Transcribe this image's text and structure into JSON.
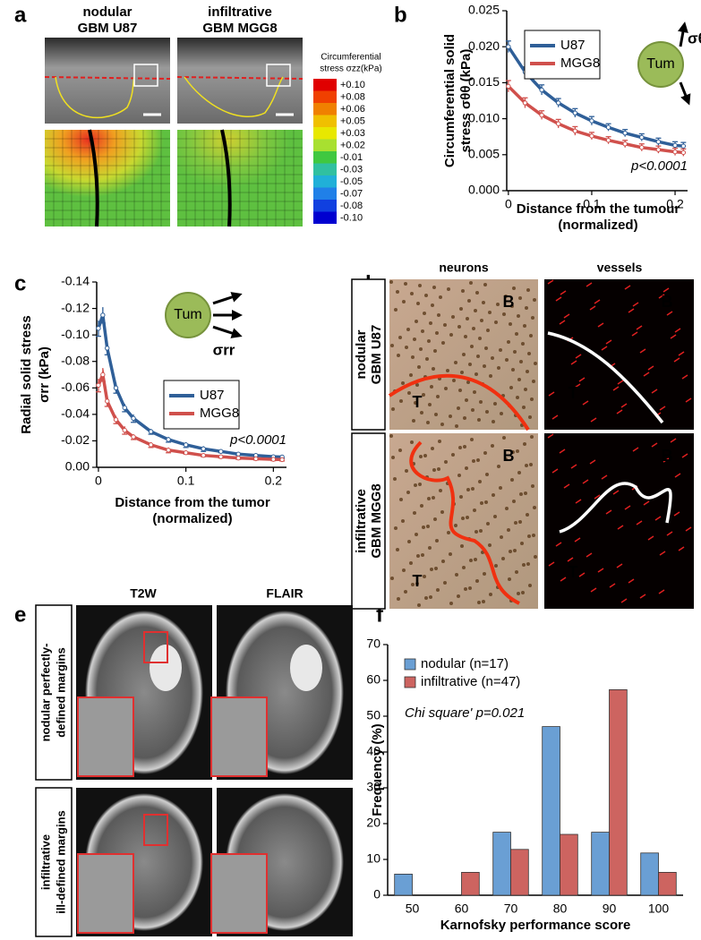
{
  "panel_letters": [
    "a",
    "b",
    "c",
    "d",
    "e",
    "f"
  ],
  "panel_a": {
    "columns": [
      [
        "nodular",
        "GBM U87"
      ],
      [
        "infiltrative",
        "GBM MGG8"
      ]
    ],
    "colorbar_title": [
      "Circumferential",
      "stress σzz(kPa)"
    ],
    "colorbar_labels": [
      "+0.10",
      "+0.08",
      "+0.06",
      "+0.05",
      "+0.03",
      "+0.02",
      "-0.01",
      "-0.03",
      "-0.05",
      "-0.07",
      "-0.08",
      "-0.10"
    ]
  },
  "panel_d": {
    "columns": [
      "neurons",
      "vessels"
    ],
    "rows": [
      [
        "nodular",
        "GBM U87"
      ],
      [
        "infiltrative",
        "GBM MGG8"
      ]
    ],
    "region_labels": [
      "B",
      "T"
    ]
  },
  "panel_e": {
    "columns": [
      "T2W",
      "FLAIR"
    ],
    "rows": [
      [
        "nodular perfectly-",
        "defined margins"
      ],
      [
        "infiltrative",
        "ill-defined margins"
      ]
    ]
  },
  "chart_data": [
    {
      "type": "line",
      "y_label": [
        "Circumferential solid",
        "stress σθθ (kPa)"
      ],
      "x_label": [
        "Distance from the tumour",
        "(normalized)"
      ],
      "x": [
        0,
        0.02,
        0.04,
        0.06,
        0.08,
        0.1,
        0.12,
        0.14,
        0.16,
        0.18,
        0.2,
        0.21
      ],
      "series": [
        {
          "name": "U87",
          "color": "#2f5f98",
          "values": [
            0.02,
            0.0165,
            0.014,
            0.0122,
            0.0108,
            0.0097,
            0.0088,
            0.008,
            0.0074,
            0.0068,
            0.0063,
            0.0062
          ],
          "errors": [
            0.0008,
            0.0007,
            0.0007,
            0.0006,
            0.0006,
            0.0006,
            0.0005,
            0.0005,
            0.0005,
            0.0005,
            0.0005,
            0.0005
          ]
        },
        {
          "name": "MGG8",
          "color": "#d0504c",
          "values": [
            0.0145,
            0.0122,
            0.0105,
            0.0093,
            0.0083,
            0.0076,
            0.007,
            0.0065,
            0.006,
            0.0057,
            0.0054,
            0.0053
          ],
          "errors": [
            0.0008,
            0.0007,
            0.0006,
            0.0006,
            0.0006,
            0.0005,
            0.0005,
            0.0005,
            0.0005,
            0.0005,
            0.0005,
            0.0005
          ]
        }
      ],
      "xlim": [
        -0.002,
        0.215
      ],
      "ylim": [
        0,
        0.025
      ],
      "xticks": [
        0,
        0.1,
        0.2
      ],
      "yticks": [
        {
          "value": 0,
          "label": "0.000"
        },
        0.005,
        {
          "value": 0.01,
          "label": "0.010"
        },
        0.015,
        {
          "value": 0.02,
          "label": "0.020"
        },
        0.025
      ],
      "legend": "upper left",
      "annotation": "p<0.0001",
      "inset": [
        "Tum",
        "σθθ"
      ]
    },
    {
      "type": "line",
      "y_label": [
        "Radial solid stress",
        "σrr (kPa)"
      ],
      "x_label": [
        "Distance from the tumor",
        "(normalized)"
      ],
      "x": [
        0,
        0.005,
        0.01,
        0.02,
        0.03,
        0.04,
        0.06,
        0.08,
        0.1,
        0.12,
        0.14,
        0.16,
        0.18,
        0.2,
        0.21
      ],
      "series": [
        {
          "name": "U87",
          "color": "#2f5f98",
          "values": [
            -0.105,
            -0.115,
            -0.09,
            -0.06,
            -0.045,
            -0.037,
            -0.027,
            -0.021,
            -0.017,
            -0.014,
            -0.012,
            -0.01,
            -0.009,
            -0.008,
            -0.0078
          ],
          "errors": [
            0.006,
            0.006,
            0.005,
            0.004,
            0.003,
            0.003,
            0.002,
            0.002,
            0.002,
            0.002,
            0.001,
            0.001,
            0.001,
            0.001,
            0.001
          ]
        },
        {
          "name": "MGG8",
          "color": "#d0504c",
          "values": [
            -0.062,
            -0.07,
            -0.05,
            -0.036,
            -0.028,
            -0.023,
            -0.017,
            -0.013,
            -0.011,
            -0.009,
            -0.008,
            -0.007,
            -0.0065,
            -0.006,
            -0.0058
          ],
          "errors": [
            0.005,
            0.005,
            0.004,
            0.003,
            0.003,
            0.002,
            0.002,
            0.002,
            0.001,
            0.001,
            0.001,
            0.001,
            0.001,
            0.001,
            0.001
          ]
        }
      ],
      "xlim": [
        -0.002,
        0.215
      ],
      "ylim": [
        0,
        -0.14
      ],
      "xticks": [
        0,
        0.1,
        0.2
      ],
      "yticks": [
        {
          "value": 0,
          "label": "0.00"
        },
        -0.02,
        -0.04,
        -0.06,
        -0.08,
        {
          "value": -0.1,
          "label": "-0.10"
        },
        -0.12,
        -0.14
      ],
      "legend": "center right",
      "annotation": "p<0.0001",
      "inset": [
        "Tum",
        "σrr"
      ]
    },
    {
      "type": "bar",
      "y_label": [
        "Frequency (%)"
      ],
      "x_label": [
        "Karnofsky performance score"
      ],
      "categories": [
        "50",
        "60",
        "70",
        "80",
        "90",
        "100"
      ],
      "series": [
        {
          "name": "nodular (n=17)",
          "color": "#6a9fd4",
          "values": [
            5.9,
            0,
            17.6,
            47.1,
            17.6,
            11.8
          ]
        },
        {
          "name": "infiltrative (n=47)",
          "color": "#cd6460",
          "values": [
            0,
            6.4,
            12.8,
            17,
            57.4,
            6.4
          ]
        }
      ],
      "ylim": [
        0,
        70
      ],
      "yticks": [
        0,
        10,
        20,
        30,
        40,
        50,
        60,
        70
      ],
      "legend": "upper left",
      "annotation": "Chi square' p=0.021"
    }
  ]
}
